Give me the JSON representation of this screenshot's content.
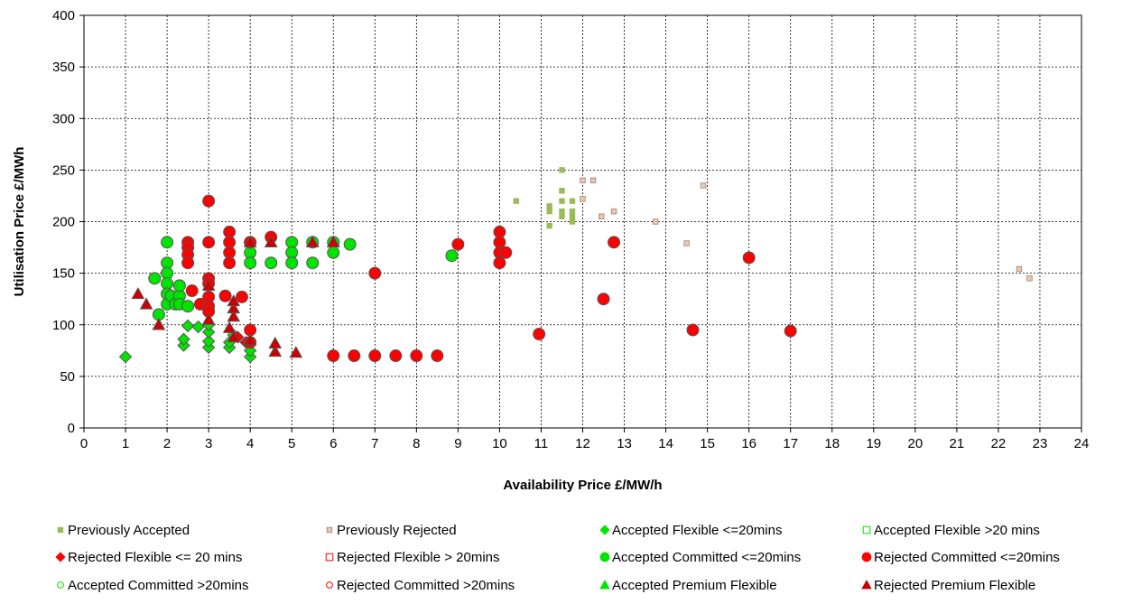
{
  "chart_data": {
    "type": "scatter",
    "title": "",
    "xlabel": "Availability Price £/MW/h",
    "ylabel": "Utilisation Price £/MWh",
    "xlim": [
      0,
      24
    ],
    "ylim": [
      0,
      400
    ],
    "x_ticks": [
      "0",
      "1",
      "2",
      "3",
      "4",
      "5",
      "6",
      "7",
      "8",
      "9",
      "10",
      "11",
      "12",
      "13",
      "14",
      "15",
      "16",
      "17",
      "18",
      "19",
      "20",
      "21",
      "22",
      "23",
      "24"
    ],
    "y_ticks": [
      "0",
      "50",
      "100",
      "150",
      "200",
      "250",
      "300",
      "350",
      "400"
    ],
    "grid": true,
    "legend_position": "bottom",
    "series": [
      {
        "name": "Previously Accepted",
        "marker": "small-square",
        "color": "#9bbb59",
        "stroke": "#9bbb59",
        "points": [
          [
            10.4,
            220
          ],
          [
            11.2,
            215
          ],
          [
            11.2,
            210
          ],
          [
            11.2,
            196
          ],
          [
            11.5,
            250
          ],
          [
            11.5,
            230
          ],
          [
            11.5,
            220
          ],
          [
            11.5,
            210
          ],
          [
            11.5,
            205
          ],
          [
            11.75,
            220
          ],
          [
            11.75,
            210
          ],
          [
            11.75,
            205
          ],
          [
            11.75,
            200
          ]
        ]
      },
      {
        "name": "Previously Rejected",
        "marker": "small-square",
        "color": "#e6c9b4",
        "stroke": "#a0826e",
        "points": [
          [
            12.0,
            240
          ],
          [
            12.0,
            222
          ],
          [
            12.25,
            240
          ],
          [
            12.45,
            205
          ],
          [
            12.75,
            210
          ],
          [
            13.75,
            200
          ],
          [
            14.5,
            179
          ],
          [
            14.9,
            235
          ],
          [
            22.5,
            154
          ],
          [
            22.75,
            145
          ]
        ]
      },
      {
        "name": "Accepted Flexible <=20mins",
        "marker": "diamond",
        "color": "#00e400",
        "stroke": "#555555",
        "points": [
          [
            1.0,
            69
          ],
          [
            2.4,
            80
          ],
          [
            2.4,
            86
          ],
          [
            2.5,
            99
          ],
          [
            2.75,
            98
          ],
          [
            3.0,
            78
          ],
          [
            3.0,
            84
          ],
          [
            3.0,
            93
          ],
          [
            3.0,
            100
          ],
          [
            3.5,
            78
          ],
          [
            3.5,
            83
          ],
          [
            3.6,
            90
          ],
          [
            4.0,
            69
          ],
          [
            4.0,
            75
          ]
        ]
      },
      {
        "name": "Accepted Flexible >20 mins",
        "marker": "open-square",
        "color": "#00e400",
        "stroke": "#00e400",
        "points": []
      },
      {
        "name": "Rejected Flexible <= 20 mins",
        "marker": "diamond",
        "color": "#ff0000",
        "stroke": "#555555",
        "points": [
          [
            3.7,
            88
          ],
          [
            3.9,
            83
          ]
        ]
      },
      {
        "name": "Rejected Flexible > 20mins",
        "marker": "open-square",
        "color": "#ff0000",
        "stroke": "#ff0000",
        "points": []
      },
      {
        "name": "Accepted Committed <=20mins",
        "marker": "circle",
        "color": "#00e400",
        "stroke": "#555555",
        "points": [
          [
            1.7,
            145
          ],
          [
            1.8,
            110
          ],
          [
            2.0,
            180
          ],
          [
            2.0,
            160
          ],
          [
            2.0,
            150
          ],
          [
            2.0,
            140
          ],
          [
            2.0,
            130
          ],
          [
            2.0,
            120
          ],
          [
            2.1,
            128
          ],
          [
            2.2,
            120
          ],
          [
            2.3,
            128
          ],
          [
            2.3,
            138
          ],
          [
            2.3,
            120
          ],
          [
            2.5,
            118
          ],
          [
            4.0,
            180
          ],
          [
            4.0,
            170
          ],
          [
            4.0,
            160
          ],
          [
            4.5,
            160
          ],
          [
            5.0,
            180
          ],
          [
            5.0,
            170
          ],
          [
            5.0,
            160
          ],
          [
            5.5,
            180
          ],
          [
            5.5,
            160
          ],
          [
            6.0,
            180
          ],
          [
            6.0,
            170
          ],
          [
            6.4,
            178
          ],
          [
            8.85,
            167
          ]
        ]
      },
      {
        "name": "Rejected Committed <=20mins",
        "marker": "circle",
        "color": "#ff0000",
        "stroke": "#555555",
        "points": [
          [
            2.5,
            180
          ],
          [
            2.5,
            175
          ],
          [
            2.5,
            168
          ],
          [
            2.5,
            160
          ],
          [
            2.6,
            133
          ],
          [
            2.8,
            120
          ],
          [
            3.0,
            220
          ],
          [
            3.0,
            180
          ],
          [
            3.0,
            145
          ],
          [
            3.0,
            140
          ],
          [
            3.0,
            127
          ],
          [
            3.0,
            118
          ],
          [
            3.0,
            113
          ],
          [
            3.4,
            128
          ],
          [
            3.5,
            190
          ],
          [
            3.5,
            180
          ],
          [
            3.5,
            170
          ],
          [
            3.5,
            160
          ],
          [
            3.8,
            127
          ],
          [
            4.0,
            180
          ],
          [
            4.0,
            95
          ],
          [
            4.0,
            83
          ],
          [
            4.5,
            185
          ],
          [
            6.0,
            70
          ],
          [
            6.5,
            70
          ],
          [
            7.0,
            150
          ],
          [
            7.0,
            70
          ],
          [
            7.5,
            70
          ],
          [
            8.0,
            70
          ],
          [
            8.5,
            70
          ],
          [
            9.0,
            178
          ],
          [
            10.0,
            190
          ],
          [
            10.0,
            180
          ],
          [
            10.0,
            170
          ],
          [
            10.0,
            160
          ],
          [
            10.15,
            170
          ],
          [
            10.95,
            91
          ],
          [
            12.5,
            125
          ],
          [
            12.75,
            180
          ],
          [
            14.65,
            95
          ],
          [
            16.0,
            165
          ],
          [
            17.0,
            94
          ]
        ]
      },
      {
        "name": "Accepted Committed >20mins",
        "marker": "open-circle",
        "color": "#00e400",
        "stroke": "#00e400",
        "points": []
      },
      {
        "name": "Rejected Committed >20mins",
        "marker": "open-circle",
        "color": "#ff0000",
        "stroke": "#ff0000",
        "points": []
      },
      {
        "name": "Accepted Premium Flexible",
        "marker": "triangle",
        "color": "#00e400",
        "stroke": "#555555",
        "points": [
          [
            1.8,
            100
          ],
          [
            4.5,
            180
          ],
          [
            5.5,
            180
          ],
          [
            6.0,
            180
          ]
        ]
      },
      {
        "name": "Rejected Premium Flexible",
        "marker": "triangle",
        "color": "#cc0000",
        "stroke": "#555555",
        "points": [
          [
            1.3,
            130
          ],
          [
            1.5,
            120
          ],
          [
            1.8,
            100
          ],
          [
            3.0,
            105
          ],
          [
            3.0,
            138
          ],
          [
            3.5,
            97
          ],
          [
            3.6,
            88
          ],
          [
            3.6,
            108
          ],
          [
            3.6,
            116
          ],
          [
            3.6,
            123
          ],
          [
            4.0,
            180
          ],
          [
            4.0,
            85
          ],
          [
            4.5,
            180
          ],
          [
            4.6,
            74
          ],
          [
            4.6,
            82
          ],
          [
            5.1,
            73
          ],
          [
            5.5,
            180
          ],
          [
            6.0,
            180
          ]
        ]
      }
    ]
  }
}
